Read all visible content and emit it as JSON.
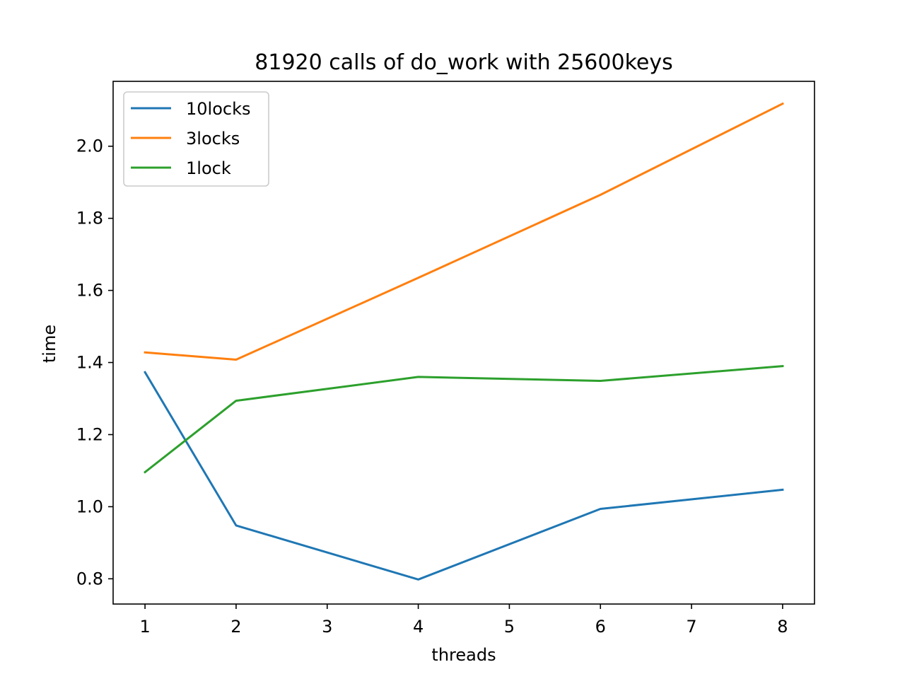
{
  "chart_data": {
    "type": "line",
    "title": "81920 calls of do_work with 25600keys",
    "xlabel": "threads",
    "ylabel": "time",
    "x": [
      1,
      2,
      4,
      6,
      8
    ],
    "xticks": [
      1,
      2,
      3,
      4,
      5,
      6,
      7,
      8
    ],
    "yticks": [
      0.8,
      1.0,
      1.2,
      1.4,
      1.6,
      1.8,
      2.0
    ],
    "xlim": [
      0.65,
      8.35
    ],
    "ylim": [
      0.73,
      2.18
    ],
    "grid": false,
    "legend_position": "top-left",
    "series": [
      {
        "name": "10locks",
        "color": "#1f77b4",
        "values": [
          1.373,
          0.948,
          0.798,
          0.994,
          1.047
        ]
      },
      {
        "name": "3locks",
        "color": "#ff7f0e",
        "values": [
          1.428,
          1.408,
          1.635,
          1.865,
          2.118
        ]
      },
      {
        "name": "1lock",
        "color": "#2ca02c",
        "values": [
          1.096,
          1.294,
          1.36,
          1.349,
          1.39
        ]
      }
    ]
  }
}
